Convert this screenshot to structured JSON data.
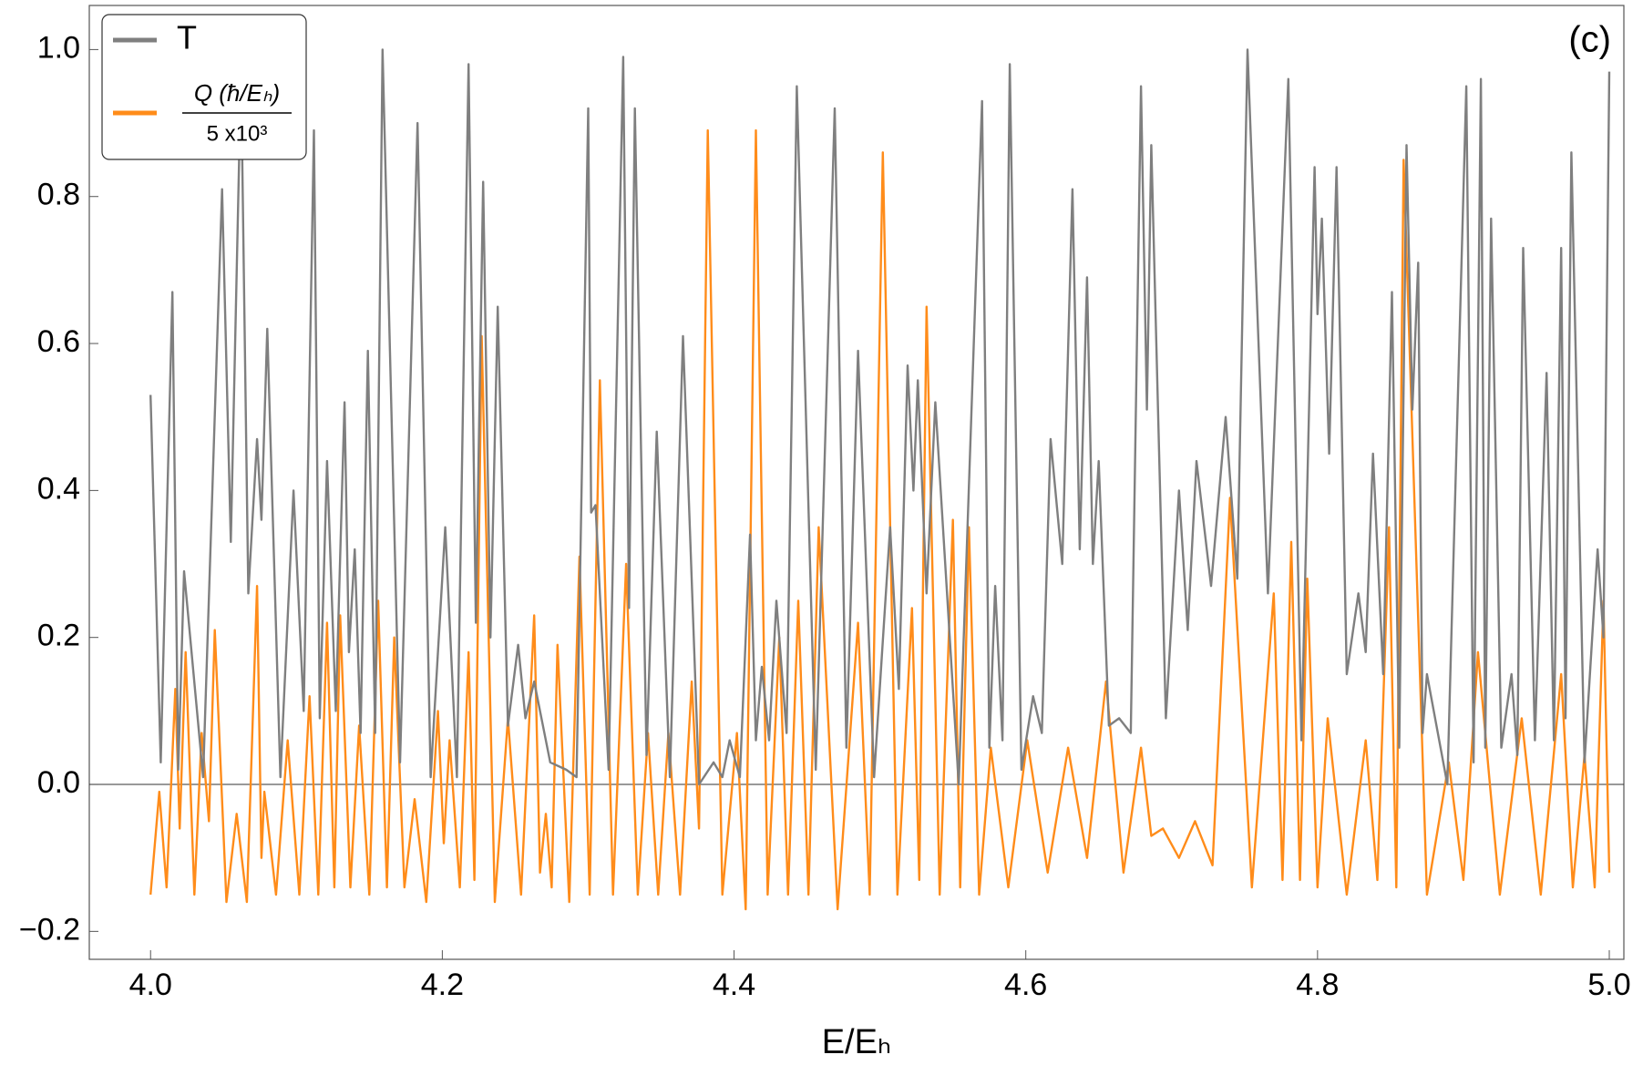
{
  "chart_data": {
    "type": "line",
    "annotation": "(c)",
    "x_label": "E/Eₕ",
    "xlim": [
      3.958,
      5.01
    ],
    "xticks": [
      {
        "value": 4,
        "label": "4.0"
      },
      4.2,
      4.4,
      4.6,
      4.8,
      {
        "value": 5,
        "label": "5.0"
      }
    ],
    "ylim": [
      -0.238,
      1.06
    ],
    "yticks": [
      {
        "value": -0.2,
        "label": "−0.2"
      },
      {
        "value": 0,
        "label": "0.0"
      },
      0.2,
      0.4,
      0.6,
      0.8,
      {
        "value": 1,
        "label": "1.0"
      }
    ],
    "grid": false,
    "zero_line": true,
    "legend": "top-left",
    "series": [
      {
        "name": "T",
        "color": "#7f7f7f",
        "x": [
          4.0,
          4.007,
          4.015,
          4.019,
          4.023,
          4.036,
          4.049,
          4.055,
          4.062,
          4.067,
          4.073,
          4.076,
          4.08,
          4.089,
          4.098,
          4.105,
          4.112,
          4.116,
          4.121,
          4.127,
          4.133,
          4.136,
          4.14,
          4.144,
          4.149,
          4.154,
          4.159,
          4.171,
          4.183,
          4.192,
          4.202,
          4.21,
          4.218,
          4.223,
          4.228,
          4.233,
          4.238,
          4.245,
          4.252,
          4.257,
          4.263,
          4.274,
          4.285,
          4.292,
          4.3,
          4.302,
          4.305,
          4.314,
          4.324,
          4.328,
          4.332,
          4.34,
          4.347,
          4.356,
          4.365,
          4.376,
          4.386,
          4.392,
          4.397,
          4.404,
          4.411,
          4.415,
          4.419,
          4.424,
          4.429,
          4.436,
          4.443,
          4.456,
          4.469,
          4.477,
          4.485,
          4.496,
          4.507,
          4.513,
          4.519,
          4.523,
          4.526,
          4.532,
          4.538,
          4.554,
          4.57,
          4.575,
          4.579,
          4.584,
          4.589,
          4.597,
          4.605,
          4.611,
          4.617,
          4.625,
          4.632,
          4.637,
          4.642,
          4.646,
          4.65,
          4.657,
          4.664,
          4.672,
          4.679,
          4.683,
          4.686,
          4.696,
          4.705,
          4.711,
          4.717,
          4.727,
          4.737,
          4.745,
          4.752,
          4.766,
          4.78,
          4.789,
          4.798,
          4.8,
          4.803,
          4.808,
          4.813,
          4.82,
          4.828,
          4.833,
          4.838,
          4.845,
          4.851,
          4.856,
          4.861,
          4.865,
          4.869,
          4.872,
          4.875,
          4.889,
          4.902,
          4.907,
          4.912,
          4.915,
          4.919,
          4.926,
          4.933,
          4.937,
          4.941,
          4.949,
          4.957,
          4.962,
          4.967,
          4.97,
          4.974,
          4.983,
          4.992,
          4.996,
          5.0
        ],
        "values": [
          0.53,
          0.03,
          0.67,
          0.02,
          0.29,
          0.01,
          0.81,
          0.33,
          0.97,
          0.26,
          0.47,
          0.36,
          0.62,
          0.01,
          0.4,
          0.1,
          0.89,
          0.09,
          0.44,
          0.1,
          0.52,
          0.18,
          0.32,
          0.07,
          0.59,
          0.07,
          1.0,
          0.03,
          0.9,
          0.01,
          0.35,
          0.01,
          0.98,
          0.22,
          0.82,
          0.2,
          0.65,
          0.08,
          0.19,
          0.09,
          0.14,
          0.03,
          0.02,
          0.01,
          0.92,
          0.37,
          0.38,
          0.02,
          0.99,
          0.24,
          0.92,
          0.04,
          0.48,
          0.01,
          0.61,
          0.0,
          0.03,
          0.01,
          0.06,
          0.01,
          0.34,
          0.06,
          0.16,
          0.06,
          0.25,
          0.07,
          0.95,
          0.02,
          0.92,
          0.05,
          0.59,
          0.01,
          0.35,
          0.13,
          0.57,
          0.4,
          0.55,
          0.26,
          0.52,
          0.0,
          0.93,
          0.05,
          0.27,
          0.06,
          0.98,
          0.02,
          0.12,
          0.07,
          0.47,
          0.3,
          0.81,
          0.32,
          0.69,
          0.3,
          0.44,
          0.08,
          0.09,
          0.07,
          0.95,
          0.51,
          0.87,
          0.09,
          0.4,
          0.21,
          0.44,
          0.27,
          0.5,
          0.28,
          1.0,
          0.26,
          0.96,
          0.06,
          0.84,
          0.64,
          0.77,
          0.45,
          0.84,
          0.15,
          0.26,
          0.18,
          0.45,
          0.15,
          0.67,
          0.05,
          0.87,
          0.51,
          0.71,
          0.07,
          0.15,
          0.0,
          0.95,
          0.03,
          0.96,
          0.05,
          0.77,
          0.05,
          0.15,
          0.04,
          0.73,
          0.06,
          0.56,
          0.06,
          0.73,
          0.09,
          0.86,
          0.03,
          0.32,
          0.2,
          0.97
        ]
      },
      {
        "name": "Q (ħ/Eₕ)",
        "name_divisor": "5 x10³",
        "color": "#ff8c1a",
        "x": [
          4.0,
          4.006,
          4.011,
          4.017,
          4.02,
          4.024,
          4.03,
          4.035,
          4.04,
          4.044,
          4.052,
          4.059,
          4.066,
          4.073,
          4.076,
          4.078,
          4.086,
          4.094,
          4.102,
          4.109,
          4.115,
          4.121,
          4.126,
          4.13,
          4.137,
          4.143,
          4.15,
          4.156,
          4.162,
          4.167,
          4.174,
          4.181,
          4.189,
          4.197,
          4.201,
          4.205,
          4.212,
          4.218,
          4.222,
          4.227,
          4.236,
          4.245,
          4.254,
          4.263,
          4.267,
          4.271,
          4.275,
          4.279,
          4.287,
          4.294,
          4.301,
          4.308,
          4.317,
          4.326,
          4.334,
          4.341,
          4.348,
          4.355,
          4.363,
          4.371,
          4.376,
          4.382,
          4.392,
          4.402,
          4.408,
          4.415,
          4.423,
          4.431,
          4.437,
          4.444,
          4.451,
          4.458,
          4.471,
          4.485,
          4.493,
          4.502,
          4.512,
          4.522,
          4.527,
          4.532,
          4.541,
          4.55,
          4.555,
          4.561,
          4.568,
          4.576,
          4.588,
          4.601,
          4.615,
          4.629,
          4.642,
          4.655,
          4.667,
          4.679,
          4.686,
          4.694,
          4.705,
          4.716,
          4.728,
          4.74,
          4.755,
          4.77,
          4.776,
          4.782,
          4.788,
          4.793,
          4.8,
          4.807,
          4.82,
          4.833,
          4.841,
          4.849,
          4.854,
          4.859,
          4.875,
          4.89,
          4.9,
          4.91,
          4.925,
          4.94,
          4.953,
          4.967,
          4.975,
          4.983,
          4.99,
          4.996,
          5.0
        ],
        "values": [
          -0.15,
          -0.01,
          -0.14,
          0.13,
          -0.06,
          0.18,
          -0.15,
          0.07,
          -0.05,
          0.21,
          -0.16,
          -0.04,
          -0.16,
          0.27,
          -0.1,
          -0.01,
          -0.15,
          0.06,
          -0.15,
          0.12,
          -0.15,
          0.22,
          -0.14,
          0.23,
          -0.14,
          0.08,
          -0.15,
          0.25,
          -0.14,
          0.2,
          -0.14,
          -0.02,
          -0.16,
          0.1,
          -0.08,
          0.06,
          -0.14,
          0.18,
          -0.13,
          0.61,
          -0.16,
          0.09,
          -0.15,
          0.23,
          -0.12,
          -0.04,
          -0.14,
          0.19,
          -0.16,
          0.31,
          -0.15,
          0.55,
          -0.15,
          0.3,
          -0.15,
          0.07,
          -0.15,
          0.07,
          -0.15,
          0.14,
          -0.06,
          0.89,
          -0.15,
          0.07,
          -0.17,
          0.89,
          -0.15,
          0.2,
          -0.15,
          0.25,
          -0.15,
          0.35,
          -0.17,
          0.22,
          -0.15,
          0.86,
          -0.15,
          0.24,
          -0.13,
          0.65,
          -0.15,
          0.36,
          -0.14,
          0.35,
          -0.15,
          0.05,
          -0.14,
          0.06,
          -0.12,
          0.05,
          -0.1,
          0.14,
          -0.12,
          0.05,
          -0.07,
          -0.06,
          -0.1,
          -0.05,
          -0.11,
          0.39,
          -0.14,
          0.26,
          -0.13,
          0.33,
          -0.13,
          0.28,
          -0.14,
          0.09,
          -0.15,
          0.06,
          -0.13,
          0.35,
          -0.14,
          0.85,
          -0.15,
          0.03,
          -0.13,
          0.18,
          -0.15,
          0.09,
          -0.15,
          0.15,
          -0.14,
          0.04,
          -0.14,
          0.25,
          -0.12
        ]
      }
    ]
  }
}
